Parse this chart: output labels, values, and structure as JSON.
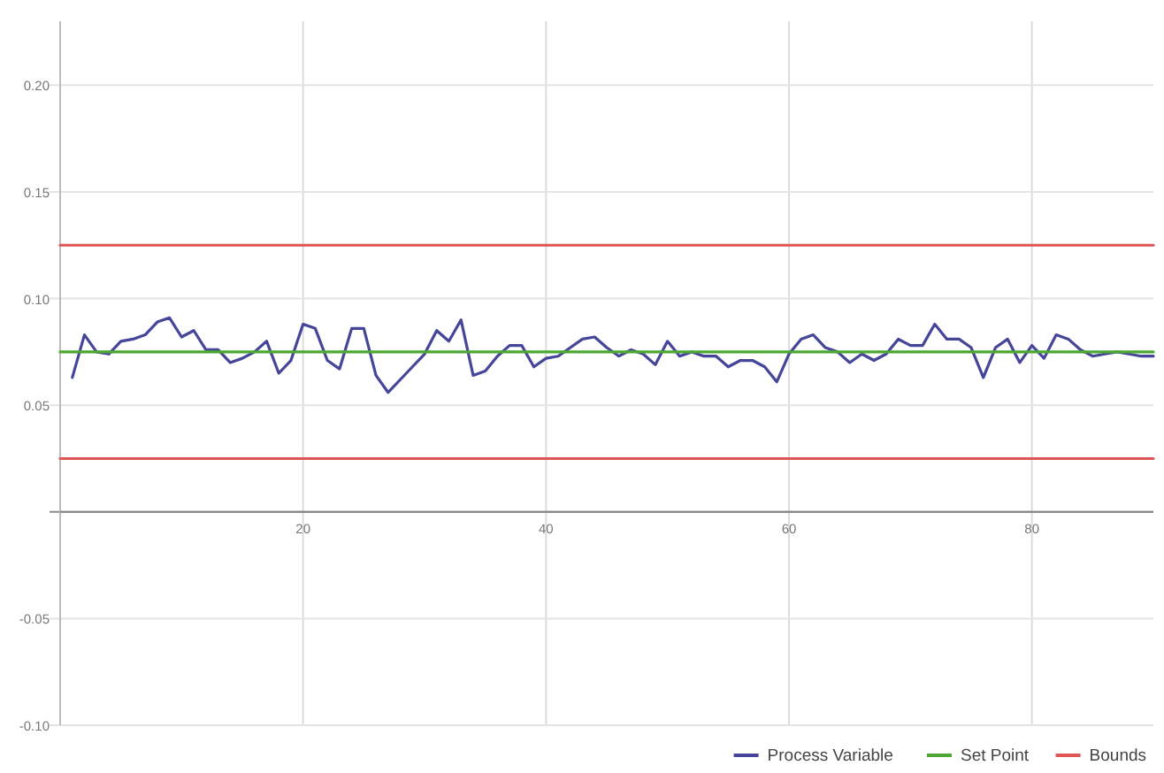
{
  "chart_data": {
    "type": "line",
    "xlim": [
      0,
      90
    ],
    "ylim": [
      -0.1,
      0.23
    ],
    "xticks": [
      20,
      40,
      60,
      80
    ],
    "yticks": [
      {
        "value": -0.1,
        "label": "-0.10"
      },
      {
        "value": -0.05,
        "label": "-0.05"
      },
      {
        "value": 0,
        "label": null
      },
      {
        "value": 0.05,
        "label": "0.05"
      },
      {
        "value": 0.1,
        "label": "0.10"
      },
      {
        "value": 0.15,
        "label": "0.15"
      },
      {
        "value": 0.2,
        "label": "0.20"
      }
    ],
    "grid": true,
    "legend": "bottom right",
    "marker": "none",
    "line_style": "solid",
    "series": [
      {
        "name": "Process Variable",
        "color": "#45459a",
        "x": [
          1,
          2,
          3,
          4,
          5,
          6,
          7,
          8,
          9,
          10,
          11,
          12,
          13,
          14,
          15,
          16,
          17,
          18,
          19,
          20,
          21,
          22,
          23,
          24,
          25,
          26,
          27,
          28,
          29,
          30,
          31,
          32,
          33,
          34,
          35,
          36,
          37,
          38,
          39,
          40,
          41,
          42,
          43,
          44,
          45,
          46,
          47,
          48,
          49,
          50,
          51,
          52,
          53,
          54,
          55,
          56,
          57,
          58,
          59,
          60,
          61,
          62,
          63,
          64,
          65,
          66,
          67,
          68,
          69,
          70,
          71,
          72,
          73,
          74,
          75,
          76,
          77,
          78,
          79,
          80,
          81,
          82,
          83,
          84,
          85,
          86,
          87,
          88,
          89,
          90
        ],
        "values": [
          0.063,
          0.083,
          0.075,
          0.074,
          0.08,
          0.081,
          0.083,
          0.089,
          0.091,
          0.082,
          0.085,
          0.076,
          0.076,
          0.07,
          0.072,
          0.075,
          0.08,
          0.065,
          0.071,
          0.088,
          0.086,
          0.071,
          0.067,
          0.086,
          0.086,
          0.064,
          0.056,
          0.062,
          0.068,
          0.074,
          0.085,
          0.08,
          0.09,
          0.064,
          0.066,
          0.073,
          0.078,
          0.078,
          0.068,
          0.072,
          0.073,
          0.077,
          0.081,
          0.082,
          0.077,
          0.073,
          0.076,
          0.074,
          0.069,
          0.08,
          0.073,
          0.075,
          0.073,
          0.073,
          0.068,
          0.071,
          0.071,
          0.068,
          0.061,
          0.074,
          0.081,
          0.083,
          0.077,
          0.075,
          0.07,
          0.074,
          0.071,
          0.074,
          0.081,
          0.078,
          0.078,
          0.088,
          0.081,
          0.081,
          0.077,
          0.063,
          0.077,
          0.081,
          0.07,
          0.078,
          0.072,
          0.083,
          0.081,
          0.076,
          0.073,
          0.074,
          0.075,
          0.074,
          0.073,
          0.073
        ]
      },
      {
        "name": "Set Point",
        "color": "#4ca832",
        "x": [
          0,
          90
        ],
        "values": [
          0.075,
          0.075
        ]
      },
      {
        "name": "Bounds",
        "color": "#e05555",
        "x": [
          0,
          90
        ],
        "values": [
          0.125,
          0.125
        ]
      },
      {
        "color": "#e05555",
        "x": [
          0,
          90
        ],
        "values": [
          0.025,
          0.025
        ]
      }
    ]
  }
}
